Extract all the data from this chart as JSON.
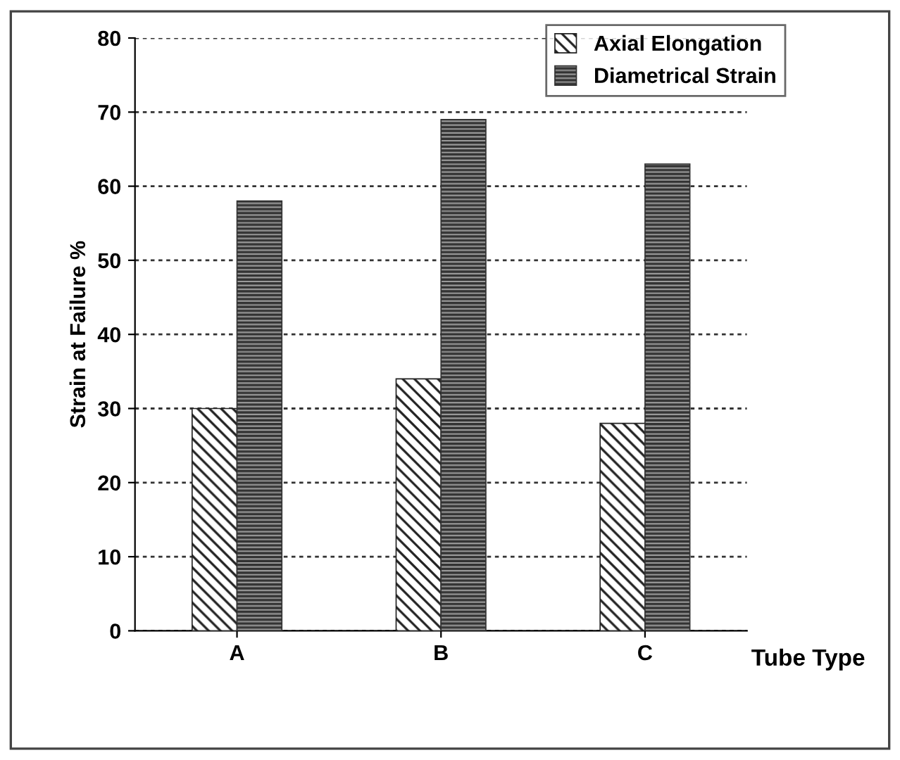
{
  "chart_data": {
    "type": "bar",
    "xlabel": "Tube Type",
    "ylabel": "Strain at Failure %",
    "categories": [
      "A",
      "B",
      "C"
    ],
    "series": [
      {
        "name": "Axial Elongation",
        "color": "#222222",
        "values": [
          30,
          34,
          28
        ]
      },
      {
        "name": "Diametrical Strain",
        "color": "#333333",
        "values": [
          58,
          69,
          63
        ]
      }
    ],
    "ylim": [
      0,
      80
    ],
    "yticks": [
      0,
      10,
      20,
      30,
      40,
      50,
      60,
      70,
      80
    ],
    "grid": "y",
    "legend": "top right"
  }
}
